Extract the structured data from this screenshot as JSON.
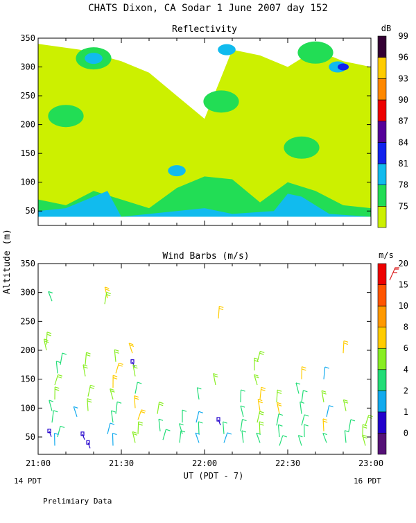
{
  "header": {
    "title": "CHATS Dixon, CA  Sodar    1 June 2007   day 152",
    "footer_note": "Prelimiary Data",
    "x_axis_label": "UT  (PDT - 7)",
    "y_axis_label": "Altitude (m)",
    "left_local_time": "14 PDT",
    "right_local_time": "16 PDT"
  },
  "chart_data": [
    {
      "type": "heatmap",
      "title": "Reflectivity",
      "xlabel": "UT  (PDT - 7)",
      "ylabel": "Altitude (m)",
      "x_ticks": [
        "21:00",
        "21:30",
        "22:00",
        "22:30",
        "23:00"
      ],
      "y_ticks": [
        50,
        100,
        150,
        200,
        250,
        300,
        350
      ],
      "xlim": [
        "21:00",
        "23:00"
      ],
      "ylim": [
        25,
        350
      ],
      "colorbar": {
        "unit": "dB",
        "levels": [
          75,
          78,
          81,
          84,
          87,
          90,
          93,
          96,
          99
        ],
        "colors": [
          "#ccf000",
          "#22dd55",
          "#11bbee",
          "#1122ee",
          "#550099",
          "#ee0000",
          "#ff8800",
          "#ffcc00",
          "#330033"
        ]
      },
      "bands": [
        {
          "level": 75,
          "color": "#ccf000",
          "time": [
            "21:00",
            "21:15",
            "21:30",
            "21:40",
            "21:50",
            "22:00",
            "22:10",
            "22:20",
            "22:30",
            "22:40",
            "22:50",
            "23:00"
          ],
          "alt_low": [
            40,
            40,
            40,
            40,
            40,
            40,
            40,
            40,
            40,
            40,
            40,
            40
          ],
          "alt_high": [
            340,
            330,
            310,
            290,
            250,
            210,
            330,
            320,
            300,
            330,
            310,
            300
          ]
        },
        {
          "level": 78,
          "color": "#22dd55",
          "time": [
            "21:00",
            "21:10",
            "21:20",
            "21:30",
            "21:40",
            "21:50",
            "22:00",
            "22:10",
            "22:20",
            "22:30",
            "22:40",
            "22:50",
            "23:00"
          ],
          "alt_low": [
            40,
            40,
            40,
            40,
            40,
            40,
            40,
            40,
            40,
            40,
            40,
            40,
            40
          ],
          "alt_high": [
            70,
            60,
            85,
            70,
            55,
            90,
            110,
            105,
            65,
            100,
            85,
            60,
            55
          ]
        },
        {
          "level": 81,
          "color": "#11bbee",
          "time": [
            "21:00",
            "21:10",
            "21:20",
            "21:25",
            "21:30",
            "21:50",
            "22:00",
            "22:10",
            "22:25",
            "22:30",
            "22:35",
            "22:45",
            "23:00"
          ],
          "alt_low": [
            40,
            40,
            40,
            40,
            40,
            40,
            40,
            40,
            40,
            40,
            40,
            40,
            40
          ],
          "alt_high": [
            50,
            55,
            75,
            85,
            40,
            50,
            55,
            45,
            50,
            80,
            75,
            45,
            40
          ]
        }
      ],
      "patches": [
        {
          "level": 78,
          "color": "#22dd55",
          "time": "21:20",
          "alt": 315
        },
        {
          "level": 81,
          "color": "#11bbee",
          "time": "21:20",
          "alt": 315
        },
        {
          "level": 78,
          "color": "#22dd55",
          "time": "22:06",
          "alt": 240
        },
        {
          "level": 81,
          "color": "#11bbee",
          "time": "22:08",
          "alt": 330
        },
        {
          "level": 78,
          "color": "#22dd55",
          "time": "22:40",
          "alt": 325
        },
        {
          "level": 81,
          "color": "#11bbee",
          "time": "22:48",
          "alt": 300
        },
        {
          "level": 84,
          "color": "#1122ee",
          "time": "22:50",
          "alt": 300
        },
        {
          "level": 78,
          "color": "#22dd55",
          "time": "21:10",
          "alt": 215
        },
        {
          "level": 78,
          "color": "#22dd55",
          "time": "22:35",
          "alt": 160
        },
        {
          "level": 81,
          "color": "#11bbee",
          "time": "21:50",
          "alt": 120
        }
      ]
    },
    {
      "type": "scatter",
      "title": "Wind Barbs (m/s)",
      "xlabel": "UT  (PDT - 7)",
      "ylabel": "Altitude (m)",
      "x_ticks": [
        "21:00",
        "21:30",
        "22:00",
        "22:30",
        "23:00"
      ],
      "y_ticks": [
        50,
        100,
        150,
        200,
        250,
        300,
        350
      ],
      "ylim": [
        20,
        350
      ],
      "colorbar": {
        "unit": "m/s",
        "levels": [
          0,
          1,
          2,
          4,
          6,
          8,
          10,
          15,
          20
        ],
        "colors": [
          "#551177",
          "#2200cc",
          "#11aaee",
          "#22dd77",
          "#88ee22",
          "#ffcc00",
          "#ff9900",
          "#ff5500",
          "#ee0000"
        ],
        "example_barb_color": "#dd2222"
      },
      "barbs": [
        {
          "t": "21:05",
          "alt": 285,
          "speed": 4
        },
        {
          "t": "21:03",
          "alt": 210,
          "speed": 6
        },
        {
          "t": "21:03",
          "alt": 200,
          "speed": 6
        },
        {
          "t": "21:08",
          "alt": 175,
          "speed": 4
        },
        {
          "t": "21:07",
          "alt": 160,
          "speed": 4
        },
        {
          "t": "21:06",
          "alt": 140,
          "speed": 6
        },
        {
          "t": "21:06",
          "alt": 115,
          "speed": 6
        },
        {
          "t": "21:05",
          "alt": 95,
          "speed": 4
        },
        {
          "t": "21:05",
          "alt": 75,
          "speed": 4
        },
        {
          "t": "21:04",
          "alt": 60,
          "speed": 1
        },
        {
          "t": "21:07",
          "alt": 50,
          "speed": 4
        },
        {
          "t": "21:06",
          "alt": 35,
          "speed": 2
        },
        {
          "t": "21:14",
          "alt": 85,
          "speed": 2
        },
        {
          "t": "21:17",
          "alt": 175,
          "speed": 6
        },
        {
          "t": "21:17",
          "alt": 155,
          "speed": 6
        },
        {
          "t": "21:18",
          "alt": 120,
          "speed": 6
        },
        {
          "t": "21:18",
          "alt": 95,
          "speed": 6
        },
        {
          "t": "21:16",
          "alt": 55,
          "speed": 1
        },
        {
          "t": "21:18",
          "alt": 40,
          "speed": 1
        },
        {
          "t": "21:25",
          "alt": 290,
          "speed": 8
        },
        {
          "t": "21:24",
          "alt": 280,
          "speed": 6
        },
        {
          "t": "21:28",
          "alt": 180,
          "speed": 6
        },
        {
          "t": "21:28",
          "alt": 160,
          "speed": 8
        },
        {
          "t": "21:27",
          "alt": 135,
          "speed": 8
        },
        {
          "t": "21:27",
          "alt": 115,
          "speed": 6
        },
        {
          "t": "21:28",
          "alt": 90,
          "speed": 4
        },
        {
          "t": "21:27",
          "alt": 75,
          "speed": 4
        },
        {
          "t": "21:25",
          "alt": 55,
          "speed": 2
        },
        {
          "t": "21:27",
          "alt": 35,
          "speed": 2
        },
        {
          "t": "21:34",
          "alt": 195,
          "speed": 8
        },
        {
          "t": "21:34",
          "alt": 180,
          "speed": 1
        },
        {
          "t": "21:35",
          "alt": 155,
          "speed": 6
        },
        {
          "t": "21:35",
          "alt": 125,
          "speed": 4
        },
        {
          "t": "21:35",
          "alt": 100,
          "speed": 8
        },
        {
          "t": "21:36",
          "alt": 80,
          "speed": 8
        },
        {
          "t": "21:36",
          "alt": 55,
          "speed": 6
        },
        {
          "t": "21:35",
          "alt": 40,
          "speed": 6
        },
        {
          "t": "21:43",
          "alt": 90,
          "speed": 6
        },
        {
          "t": "21:44",
          "alt": 60,
          "speed": 4
        },
        {
          "t": "21:45",
          "alt": 45,
          "speed": 4
        },
        {
          "t": "21:52",
          "alt": 75,
          "speed": 4
        },
        {
          "t": "21:52",
          "alt": 55,
          "speed": 4
        },
        {
          "t": "21:51",
          "alt": 40,
          "speed": 4
        },
        {
          "t": "21:58",
          "alt": 115,
          "speed": 4
        },
        {
          "t": "21:57",
          "alt": 75,
          "speed": 2
        },
        {
          "t": "21:58",
          "alt": 55,
          "speed": 4
        },
        {
          "t": "21:58",
          "alt": 40,
          "speed": 2
        },
        {
          "t": "22:05",
          "alt": 255,
          "speed": 8
        },
        {
          "t": "22:04",
          "alt": 140,
          "speed": 6
        },
        {
          "t": "22:05",
          "alt": 80,
          "speed": 1
        },
        {
          "t": "22:07",
          "alt": 55,
          "speed": 4
        },
        {
          "t": "22:07",
          "alt": 40,
          "speed": 2
        },
        {
          "t": "22:13",
          "alt": 110,
          "speed": 4
        },
        {
          "t": "22:14",
          "alt": 85,
          "speed": 4
        },
        {
          "t": "22:13",
          "alt": 60,
          "speed": 4
        },
        {
          "t": "22:14",
          "alt": 40,
          "speed": 4
        },
        {
          "t": "22:19",
          "alt": 180,
          "speed": 6
        },
        {
          "t": "22:18",
          "alt": 165,
          "speed": 6
        },
        {
          "t": "22:19",
          "alt": 140,
          "speed": 6
        },
        {
          "t": "22:20",
          "alt": 115,
          "speed": 8
        },
        {
          "t": "22:20",
          "alt": 95,
          "speed": 8
        },
        {
          "t": "22:19",
          "alt": 75,
          "speed": 6
        },
        {
          "t": "22:20",
          "alt": 55,
          "speed": 6
        },
        {
          "t": "22:20",
          "alt": 40,
          "speed": 4
        },
        {
          "t": "22:26",
          "alt": 110,
          "speed": 6
        },
        {
          "t": "22:27",
          "alt": 90,
          "speed": 8
        },
        {
          "t": "22:26",
          "alt": 70,
          "speed": 4
        },
        {
          "t": "22:27",
          "alt": 50,
          "speed": 4
        },
        {
          "t": "22:27",
          "alt": 35,
          "speed": 4
        },
        {
          "t": "22:35",
          "alt": 150,
          "speed": 8
        },
        {
          "t": "22:34",
          "alt": 125,
          "speed": 4
        },
        {
          "t": "22:35",
          "alt": 110,
          "speed": 4
        },
        {
          "t": "22:35",
          "alt": 90,
          "speed": 4
        },
        {
          "t": "22:35",
          "alt": 70,
          "speed": 4
        },
        {
          "t": "22:36",
          "alt": 50,
          "speed": 4
        },
        {
          "t": "22:35",
          "alt": 35,
          "speed": 4
        },
        {
          "t": "22:43",
          "alt": 150,
          "speed": 2
        },
        {
          "t": "22:43",
          "alt": 110,
          "speed": 6
        },
        {
          "t": "22:44",
          "alt": 85,
          "speed": 2
        },
        {
          "t": "22:43",
          "alt": 60,
          "speed": 8
        },
        {
          "t": "22:44",
          "alt": 40,
          "speed": 4
        },
        {
          "t": "22:50",
          "alt": 195,
          "speed": 8
        },
        {
          "t": "22:51",
          "alt": 95,
          "speed": 6
        },
        {
          "t": "22:52",
          "alt": 60,
          "speed": 4
        },
        {
          "t": "22:51",
          "alt": 40,
          "speed": 4
        },
        {
          "t": "22:58",
          "alt": 70,
          "speed": 6
        },
        {
          "t": "22:57",
          "alt": 50,
          "speed": 6
        },
        {
          "t": "22:58",
          "alt": 35,
          "speed": 6
        }
      ]
    }
  ]
}
